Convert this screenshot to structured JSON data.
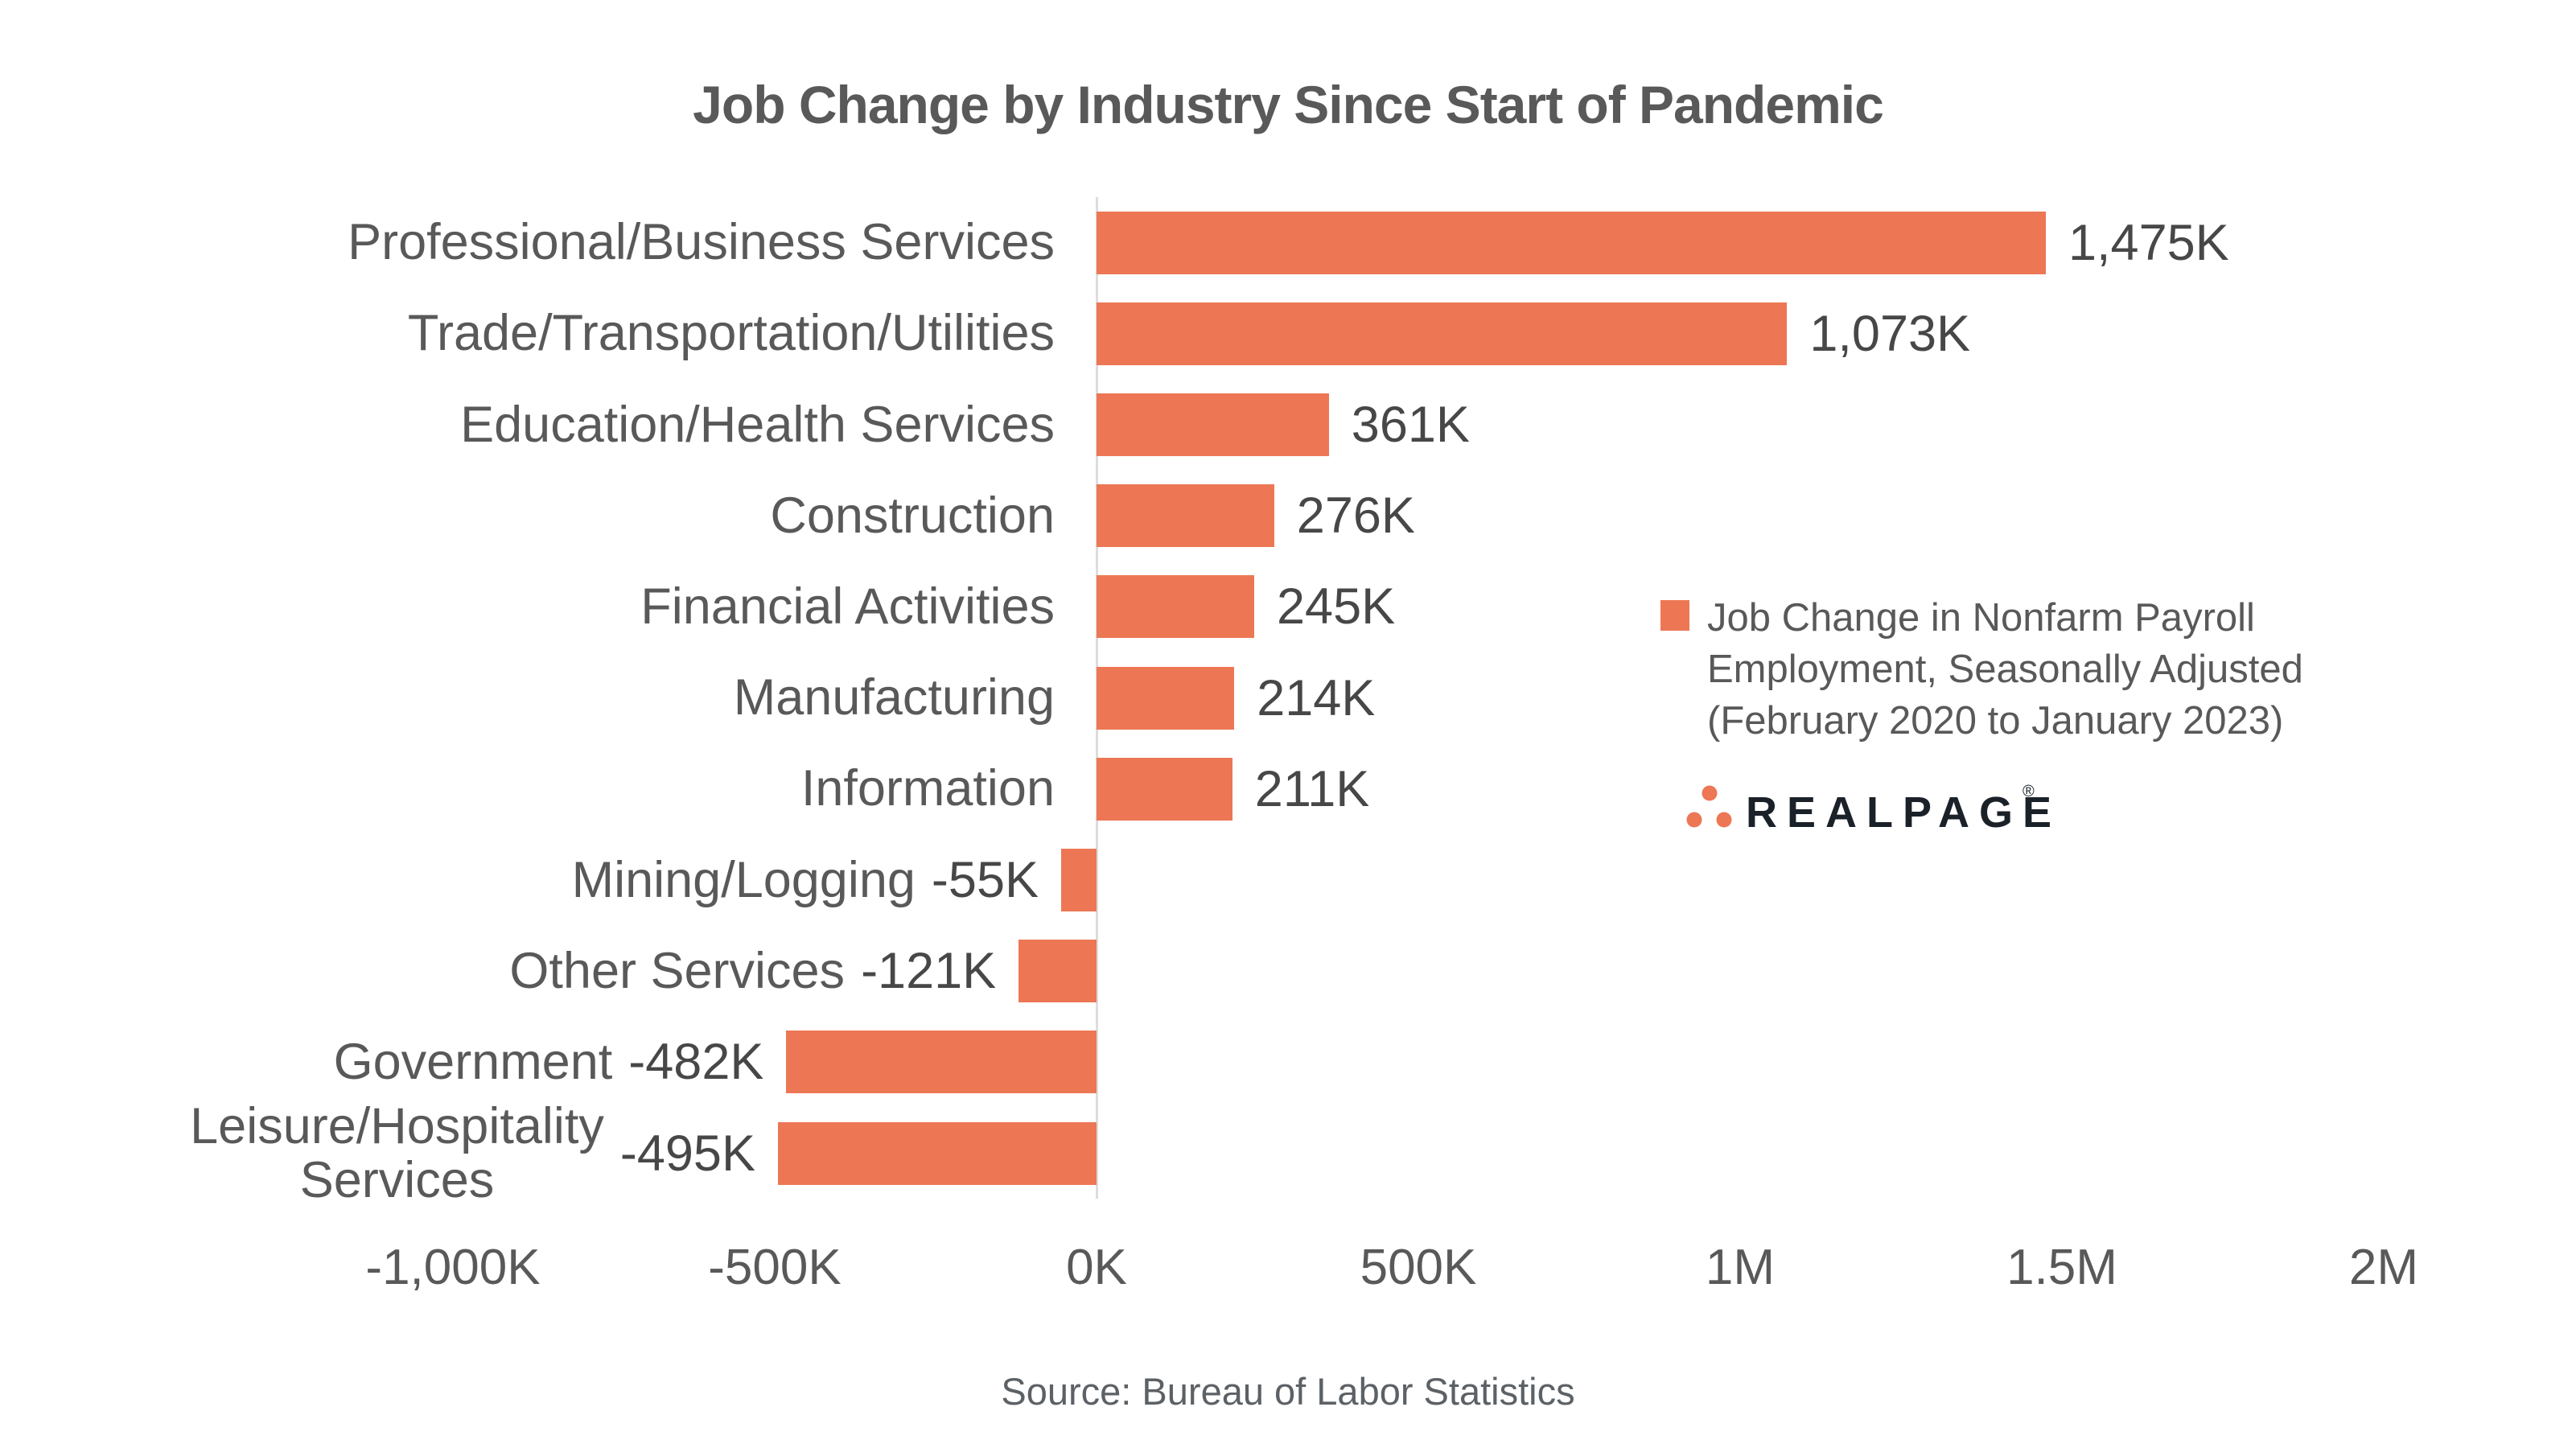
{
  "chart_data": {
    "type": "bar",
    "orientation": "horizontal",
    "title": "Job Change by Industry Since Start of Pandemic",
    "categories": [
      "Professional/Business Services",
      "Trade/Transportation/Utilities",
      "Education/Health Services",
      "Construction",
      "Financial Activities",
      "Manufacturing",
      "Information",
      "Mining/Logging",
      "Other Services",
      "Government",
      "Leisure/Hospitality\nServices"
    ],
    "values": [
      1475,
      1073,
      361,
      276,
      245,
      214,
      211,
      -55,
      -121,
      -482,
      -495
    ],
    "value_labels": [
      "1,475K",
      "1,073K",
      "361K",
      "276K",
      "245K",
      "214K",
      "211K",
      "-55K",
      "-121K",
      "-482K",
      "-495K"
    ],
    "value_unit": "K",
    "x_ticks": [
      {
        "label": "-1,000K",
        "value": -1000
      },
      {
        "label": "-500K",
        "value": -500
      },
      {
        "label": "0K",
        "value": 0
      },
      {
        "label": "500K",
        "value": 500
      },
      {
        "label": "1M",
        "value": 1000
      },
      {
        "label": "1.5M",
        "value": 1500
      },
      {
        "label": "2M",
        "value": 2000
      }
    ],
    "xlim": [
      -1000,
      2000
    ],
    "gridlines": "zero-axis-only",
    "legend_position": "right-center",
    "legend": {
      "lines": [
        "Job Change in Nonfarm Payroll",
        "Employment, Seasonally Adjusted",
        "(February 2020 to January 2023)"
      ]
    },
    "source": "Source: Bureau of Labor Statistics"
  },
  "branding": {
    "logo_text": "REALPAGE",
    "registered_mark": "®"
  },
  "colors": {
    "bar": "#ED7755",
    "category_text": "#595959",
    "value_text": "#474747",
    "axis_tick_text": "#595959",
    "title_text": "#595959",
    "legend_text": "#595959",
    "source_text": "#5C6166",
    "zero_axis_line": "#DDDDDD",
    "logo_text": "#1B2129",
    "logo_dots": "#ED7755"
  }
}
